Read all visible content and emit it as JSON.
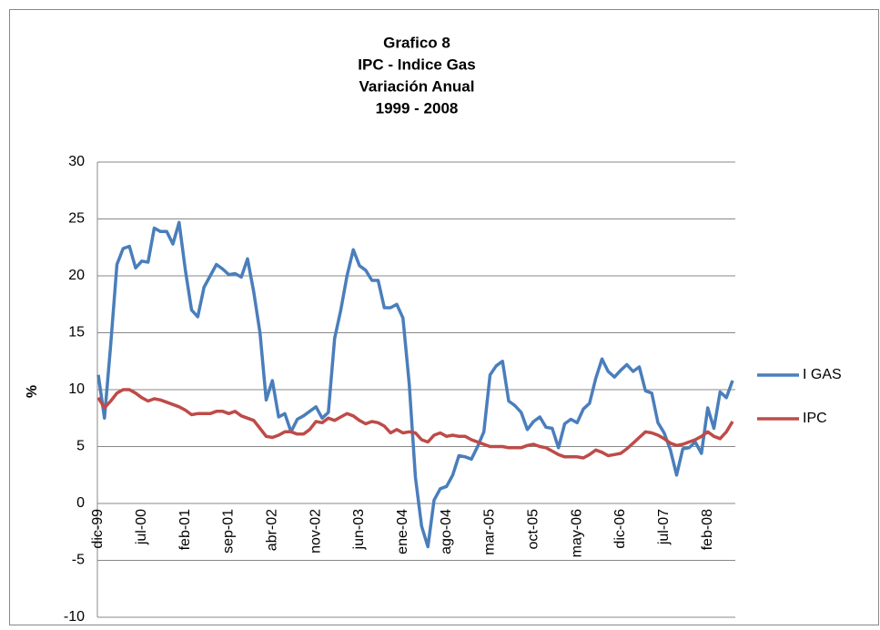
{
  "chart_data": {
    "type": "line",
    "title": [
      "Grafico 8",
      "IPC - Indice Gas",
      "Variación Anual",
      "1999 - 2008"
    ],
    "y_label": "%",
    "categories": [
      "dic-99",
      null,
      null,
      null,
      null,
      null,
      null,
      "jul-00",
      null,
      null,
      null,
      null,
      null,
      null,
      "feb-01",
      null,
      null,
      null,
      null,
      null,
      null,
      "sep-01",
      null,
      null,
      null,
      null,
      null,
      null,
      "abr-02",
      null,
      null,
      null,
      null,
      null,
      null,
      "nov-02",
      null,
      null,
      null,
      null,
      null,
      null,
      "jun-03",
      null,
      null,
      null,
      null,
      null,
      null,
      "ene-04",
      null,
      null,
      null,
      null,
      null,
      null,
      "ago-04",
      null,
      null,
      null,
      null,
      null,
      null,
      "mar-05",
      null,
      null,
      null,
      null,
      null,
      null,
      "oct-05",
      null,
      null,
      null,
      null,
      null,
      null,
      "may-06",
      null,
      null,
      null,
      null,
      null,
      null,
      "dic-06",
      null,
      null,
      null,
      null,
      null,
      null,
      "jul-07",
      null,
      null,
      null,
      null,
      null,
      null,
      "feb-08",
      null,
      null,
      null,
      null
    ],
    "series": [
      {
        "name": "I GAS",
        "color": "#4a7ebb",
        "values": [
          11.3,
          7.5,
          14,
          21,
          22.4,
          22.6,
          20.7,
          21.3,
          21.2,
          24.2,
          23.9,
          23.9,
          22.8,
          24.7,
          20.5,
          17,
          16.4,
          19,
          20,
          21,
          20.6,
          20.1,
          20.2,
          19.9,
          21.5,
          18.6,
          15,
          9.1,
          10.8,
          7.6,
          7.9,
          6.3,
          7.4,
          7.7,
          8.1,
          8.5,
          7.5,
          8,
          14.5,
          17,
          20,
          22.3,
          20.9,
          20.5,
          19.6,
          19.6,
          17.2,
          17.2,
          17.5,
          16.3,
          10.5,
          2.3,
          -2,
          -3.8,
          0.3,
          1.3,
          1.5,
          2.5,
          4.2,
          4.1,
          3.9,
          5,
          6.3,
          11.3,
          12.1,
          12.5,
          9,
          8.6,
          8,
          6.5,
          7.2,
          7.6,
          6.7,
          6.6,
          4.9,
          7,
          7.4,
          7.1,
          8.3,
          8.8,
          11,
          12.7,
          11.6,
          11.1,
          11.7,
          12.2,
          11.6,
          12,
          9.9,
          9.7,
          7.1,
          6.2,
          4.7,
          2.5,
          4.8,
          4.9,
          5.4,
          4.4,
          8.4,
          6.6,
          9.8,
          9.3,
          10.8
        ]
      },
      {
        "name": "IPC",
        "color": "#be4b48",
        "values": [
          9.3,
          8.4,
          9,
          9.7,
          10,
          10,
          9.7,
          9.3,
          9,
          9.2,
          9.1,
          8.9,
          8.7,
          8.5,
          8.2,
          7.8,
          7.9,
          7.9,
          7.9,
          8.1,
          8.1,
          7.9,
          8.1,
          7.7,
          7.5,
          7.3,
          6.6,
          5.9,
          5.8,
          6,
          6.3,
          6.3,
          6.1,
          6.1,
          6.5,
          7.2,
          7.1,
          7.5,
          7.3,
          7.6,
          7.9,
          7.7,
          7.3,
          7,
          7.2,
          7.1,
          6.8,
          6.2,
          6.5,
          6.2,
          6.3,
          6.2,
          5.6,
          5.4,
          6,
          6.2,
          5.9,
          6,
          5.9,
          5.9,
          5.6,
          5.4,
          5.2,
          5,
          5,
          5,
          4.9,
          4.9,
          4.9,
          5.1,
          5.2,
          5,
          4.9,
          4.6,
          4.3,
          4.1,
          4.1,
          4.1,
          4,
          4.3,
          4.7,
          4.5,
          4.2,
          4.3,
          4.4,
          4.8,
          5.3,
          5.8,
          6.3,
          6.2,
          6,
          5.7,
          5.3,
          5.1,
          5.2,
          5.4,
          5.6,
          5.9,
          6.3,
          5.9,
          5.7,
          6.3,
          7.2
        ]
      }
    ],
    "ylim": [
      -10,
      30
    ],
    "yticks": [
      -10,
      -5,
      0,
      5,
      10,
      15,
      20,
      25,
      30
    ],
    "grid": true,
    "legend": "right"
  }
}
